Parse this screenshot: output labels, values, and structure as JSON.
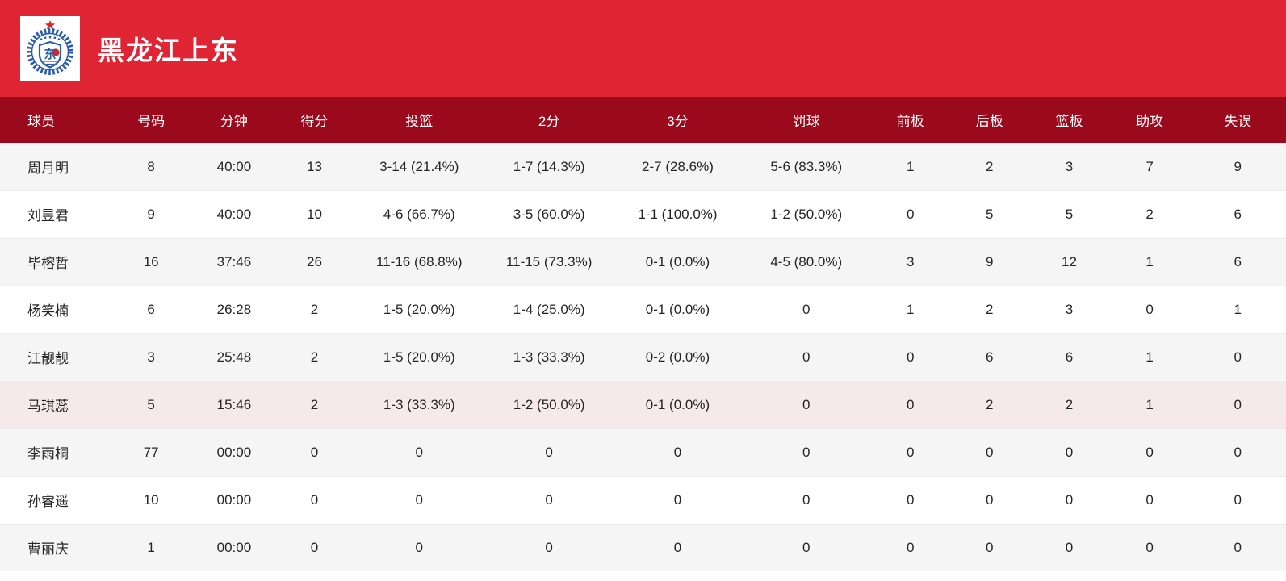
{
  "header": {
    "team_name": "黑龙江上东",
    "band_color": "#df2433",
    "logo": {
      "icon": "team-crest-icon",
      "wreath_color": "#2a5caa",
      "accent_color": "#d5281e",
      "shield_glyph": "东"
    }
  },
  "table": {
    "header_bg": "#9b0a1c",
    "row_alt_bg": "#f5f5f6",
    "row_highlight_bg": "#f6e9e9",
    "columns": [
      "球员",
      "号码",
      "分钟",
      "得分",
      "投篮",
      "2分",
      "3分",
      "罚球",
      "前板",
      "后板",
      "篮板",
      "助攻",
      "失误"
    ],
    "rows": [
      {
        "highlight": false,
        "cells": [
          "周月明",
          "8",
          "40:00",
          "13",
          "3-14 (21.4%)",
          "1-7 (14.3%)",
          "2-7 (28.6%)",
          "5-6 (83.3%)",
          "1",
          "2",
          "3",
          "7",
          "9"
        ]
      },
      {
        "highlight": false,
        "cells": [
          "刘昱君",
          "9",
          "40:00",
          "10",
          "4-6 (66.7%)",
          "3-5 (60.0%)",
          "1-1 (100.0%)",
          "1-2 (50.0%)",
          "0",
          "5",
          "5",
          "2",
          "6"
        ]
      },
      {
        "highlight": false,
        "cells": [
          "毕榕哲",
          "16",
          "37:46",
          "26",
          "11-16 (68.8%)",
          "11-15 (73.3%)",
          "0-1 (0.0%)",
          "4-5 (80.0%)",
          "3",
          "9",
          "12",
          "1",
          "6"
        ]
      },
      {
        "highlight": false,
        "cells": [
          "杨笑楠",
          "6",
          "26:28",
          "2",
          "1-5 (20.0%)",
          "1-4 (25.0%)",
          "0-1 (0.0%)",
          "0",
          "1",
          "2",
          "3",
          "0",
          "1"
        ]
      },
      {
        "highlight": false,
        "cells": [
          "江靓靓",
          "3",
          "25:48",
          "2",
          "1-5 (20.0%)",
          "1-3 (33.3%)",
          "0-2 (0.0%)",
          "0",
          "0",
          "6",
          "6",
          "1",
          "0"
        ]
      },
      {
        "highlight": true,
        "cells": [
          "马琪蕊",
          "5",
          "15:46",
          "2",
          "1-3 (33.3%)",
          "1-2 (50.0%)",
          "0-1 (0.0%)",
          "0",
          "0",
          "2",
          "2",
          "1",
          "0"
        ]
      },
      {
        "highlight": false,
        "cells": [
          "李雨桐",
          "77",
          "00:00",
          "0",
          "0",
          "0",
          "0",
          "0",
          "0",
          "0",
          "0",
          "0",
          "0"
        ]
      },
      {
        "highlight": false,
        "cells": [
          "孙睿遥",
          "10",
          "00:00",
          "0",
          "0",
          "0",
          "0",
          "0",
          "0",
          "0",
          "0",
          "0",
          "0"
        ]
      },
      {
        "highlight": false,
        "cells": [
          "曹丽庆",
          "1",
          "00:00",
          "0",
          "0",
          "0",
          "0",
          "0",
          "0",
          "0",
          "0",
          "0",
          "0"
        ]
      }
    ]
  }
}
